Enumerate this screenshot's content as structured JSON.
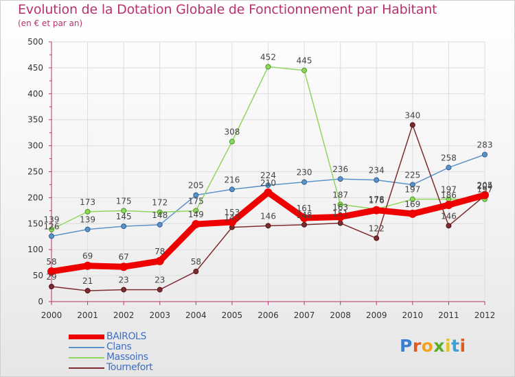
{
  "header": {
    "title": "Evolution de la Dotation Globale de Fonctionnement par Habitant",
    "subtitle": "(en € et par an)"
  },
  "logo": {
    "text": "Proxiti",
    "letters": [
      "P",
      "r",
      "o",
      "x",
      "i",
      "t",
      "i"
    ]
  },
  "colors": {
    "title": "#b8316e",
    "axis_labels": "#333333",
    "legend_text": "#3f6fc4",
    "bairols": "#ee0000",
    "clans": "#5b93c9",
    "massoins": "#8fd65c",
    "tournefort": "#7d2b2e"
  },
  "chart_data": {
    "type": "line",
    "title": "Evolution de la Dotation Globale de Fonctionnement par Habitant",
    "subtitle": "(en € et par an)",
    "xlabel": "",
    "ylabel": "",
    "ylim": [
      0,
      500
    ],
    "yticks": [
      0,
      50,
      100,
      150,
      200,
      250,
      300,
      350,
      400,
      450,
      500
    ],
    "grid": true,
    "legend_position": "bottom-left",
    "x": [
      "2000",
      "2001",
      "2002",
      "2003",
      "2004",
      "2005",
      "2006",
      "2007",
      "2008",
      "2009",
      "2010",
      "2011",
      "2012"
    ],
    "series": [
      {
        "name": "BAIROLS",
        "key": "bairols",
        "values": [
          58,
          69,
          67,
          78,
          149,
          153,
          210,
          161,
          163,
          176,
          169,
          186,
          205
        ]
      },
      {
        "name": "Clans",
        "key": "clans",
        "values": [
          126,
          139,
          145,
          148,
          205,
          216,
          224,
          230,
          236,
          234,
          225,
          258,
          283
        ]
      },
      {
        "name": "Massoins",
        "key": "massoins",
        "values": [
          139,
          173,
          175,
          172,
          175,
          308,
          452,
          445,
          187,
          178,
          197,
          197,
          197
        ]
      },
      {
        "name": "Tournefort",
        "key": "tournefort",
        "values": [
          29,
          21,
          23,
          23,
          58,
          143,
          146,
          148,
          151,
          122,
          340,
          146,
          204
        ]
      }
    ]
  }
}
